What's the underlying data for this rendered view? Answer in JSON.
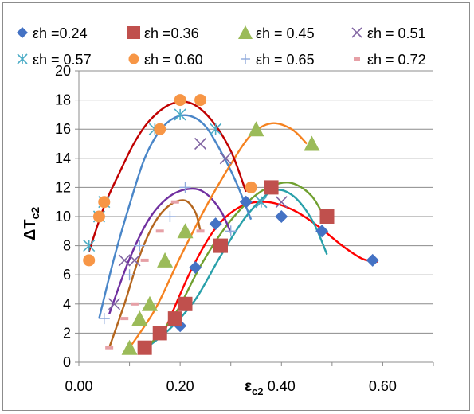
{
  "chart_data": {
    "type": "scatter",
    "xlabel": "εc2",
    "ylabel": "ΔTc2",
    "xlim": [
      0,
      0.7
    ],
    "ylim": [
      0,
      20
    ],
    "x_ticks": [
      "0.00",
      "0.20",
      "0.40",
      "0.60"
    ],
    "x_tick_values": [
      0,
      0.2,
      0.4,
      0.6
    ],
    "y_ticks": [
      "0",
      "2",
      "4",
      "6",
      "8",
      "10",
      "12",
      "14",
      "16",
      "18",
      "20"
    ],
    "y_tick_values": [
      0,
      2,
      4,
      6,
      8,
      10,
      12,
      14,
      16,
      18,
      20
    ],
    "grid": true,
    "legend_position": "top",
    "series": [
      {
        "name": "εh =0.24",
        "marker": "diamond",
        "color": "#4472C4",
        "x": [
          0.2,
          0.23,
          0.27,
          0.33,
          0.4,
          0.48,
          0.58
        ],
        "y": [
          2.5,
          6.5,
          9.5,
          11,
          10,
          9,
          7
        ],
        "trend_x": [
          0.17,
          0.22,
          0.27,
          0.32,
          0.37,
          0.42,
          0.47,
          0.52,
          0.56,
          0.59
        ],
        "trend_y": [
          2.2,
          6.2,
          9.2,
          10.7,
          11.0,
          10.5,
          9.4,
          8.0,
          7.1,
          6.9
        ],
        "trend_color": "#FF0000"
      },
      {
        "name": "εh =0.36",
        "marker": "square",
        "color": "#C0504D",
        "x": [
          0.13,
          0.16,
          0.19,
          0.21,
          0.28,
          0.38,
          0.49
        ],
        "y": [
          1,
          2,
          3,
          4,
          8,
          12,
          10
        ],
        "trend_x": [
          0.13,
          0.18,
          0.23,
          0.28,
          0.33,
          0.38,
          0.42,
          0.46,
          0.49
        ],
        "trend_y": [
          0.9,
          2.3,
          4.3,
          7.3,
          10.0,
          11.7,
          11.5,
          9.8,
          7.4
        ],
        "trend_color": "#28A0AA"
      },
      {
        "name": "εh = 0.45",
        "marker": "triangle",
        "color": "#9BBB59",
        "x": [
          0.1,
          0.12,
          0.14,
          0.17,
          0.21,
          0.35,
          0.46
        ],
        "y": [
          1,
          3,
          4,
          7,
          9,
          16,
          15
        ],
        "trend_x": [
          0.14,
          0.19,
          0.24,
          0.29,
          0.34,
          0.38,
          0.42,
          0.46,
          0.49
        ],
        "trend_y": [
          1.2,
          3.3,
          6.6,
          9.3,
          11.2,
          12.1,
          12.3,
          11.4,
          9.6
        ],
        "trend_color": "#70A030"
      },
      {
        "name": "εh = 0.51",
        "marker": "x",
        "color": "#8064A2",
        "x": [
          0.07,
          0.09,
          0.11,
          0.24,
          0.29,
          0.36,
          0.4
        ],
        "y": [
          4,
          7,
          7,
          15,
          14,
          11,
          11
        ],
        "trend_x": [
          0.06,
          0.1,
          0.14,
          0.18,
          0.22,
          0.25,
          0.28,
          0.3
        ],
        "trend_y": [
          3.3,
          7.1,
          9.9,
          11.4,
          11.9,
          11.6,
          10.4,
          8.9
        ],
        "trend_color": "#7030A0"
      },
      {
        "name": "εh = 0.57",
        "marker": "asterisk",
        "color": "#4BACC6",
        "x": [
          0.02,
          0.04,
          0.05,
          0.15,
          0.2,
          0.27,
          0.36
        ],
        "y": [
          8,
          10,
          11,
          16,
          17,
          16,
          11
        ],
        "trend_x": [
          0.04,
          0.07,
          0.1,
          0.13,
          0.16,
          0.19,
          0.22,
          0.25,
          0.28,
          0.31,
          0.34
        ],
        "trend_y": [
          3.0,
          7.2,
          10.8,
          14.0,
          15.9,
          16.8,
          16.9,
          16.2,
          14.5,
          12.4,
          9.8
        ],
        "trend_color": "#4A86C8"
      },
      {
        "name": "εh = 0.60",
        "marker": "circle",
        "color": "#F79646",
        "x": [
          0.02,
          0.04,
          0.05,
          0.16,
          0.2,
          0.24,
          0.34
        ],
        "y": [
          7,
          10,
          11,
          16,
          18,
          18,
          12
        ],
        "trend_x": [
          0.1,
          0.15,
          0.2,
          0.25,
          0.3,
          0.34,
          0.38,
          0.42,
          0.45
        ],
        "trend_y": [
          1.0,
          3.6,
          7.2,
          10.6,
          13.6,
          15.6,
          16.4,
          16.0,
          15.0
        ],
        "trend_color": "#F58220"
      },
      {
        "name": "εh = 0.65",
        "marker": "plus",
        "color": "#8EA9DB",
        "x": [
          0.05,
          0.1,
          0.12,
          0.18,
          0.21,
          0.3
        ],
        "y": [
          3,
          6,
          8,
          10,
          12,
          9
        ],
        "trend_x": [
          0.02,
          0.05,
          0.08,
          0.11,
          0.14,
          0.18,
          0.22,
          0.26,
          0.3,
          0.33
        ],
        "trend_y": [
          7.6,
          10.7,
          13.0,
          15.1,
          16.6,
          17.7,
          17.8,
          16.7,
          14.5,
          11.7
        ],
        "trend_color": "#C00000"
      },
      {
        "name": "εh = 0.72",
        "marker": "dash",
        "color": "#E6A0A6",
        "x": [
          0.06,
          0.09,
          0.11,
          0.13,
          0.16,
          0.19,
          0.24
        ],
        "y": [
          1,
          3,
          4,
          7,
          9,
          11,
          9
        ],
        "trend_x": [
          0.06,
          0.09,
          0.12,
          0.15,
          0.18,
          0.21,
          0.23,
          0.24
        ],
        "trend_y": [
          1.0,
          4.0,
          7.3,
          9.6,
          10.8,
          11.1,
          10.3,
          9.0
        ],
        "trend_color": "#B4661E"
      }
    ]
  }
}
